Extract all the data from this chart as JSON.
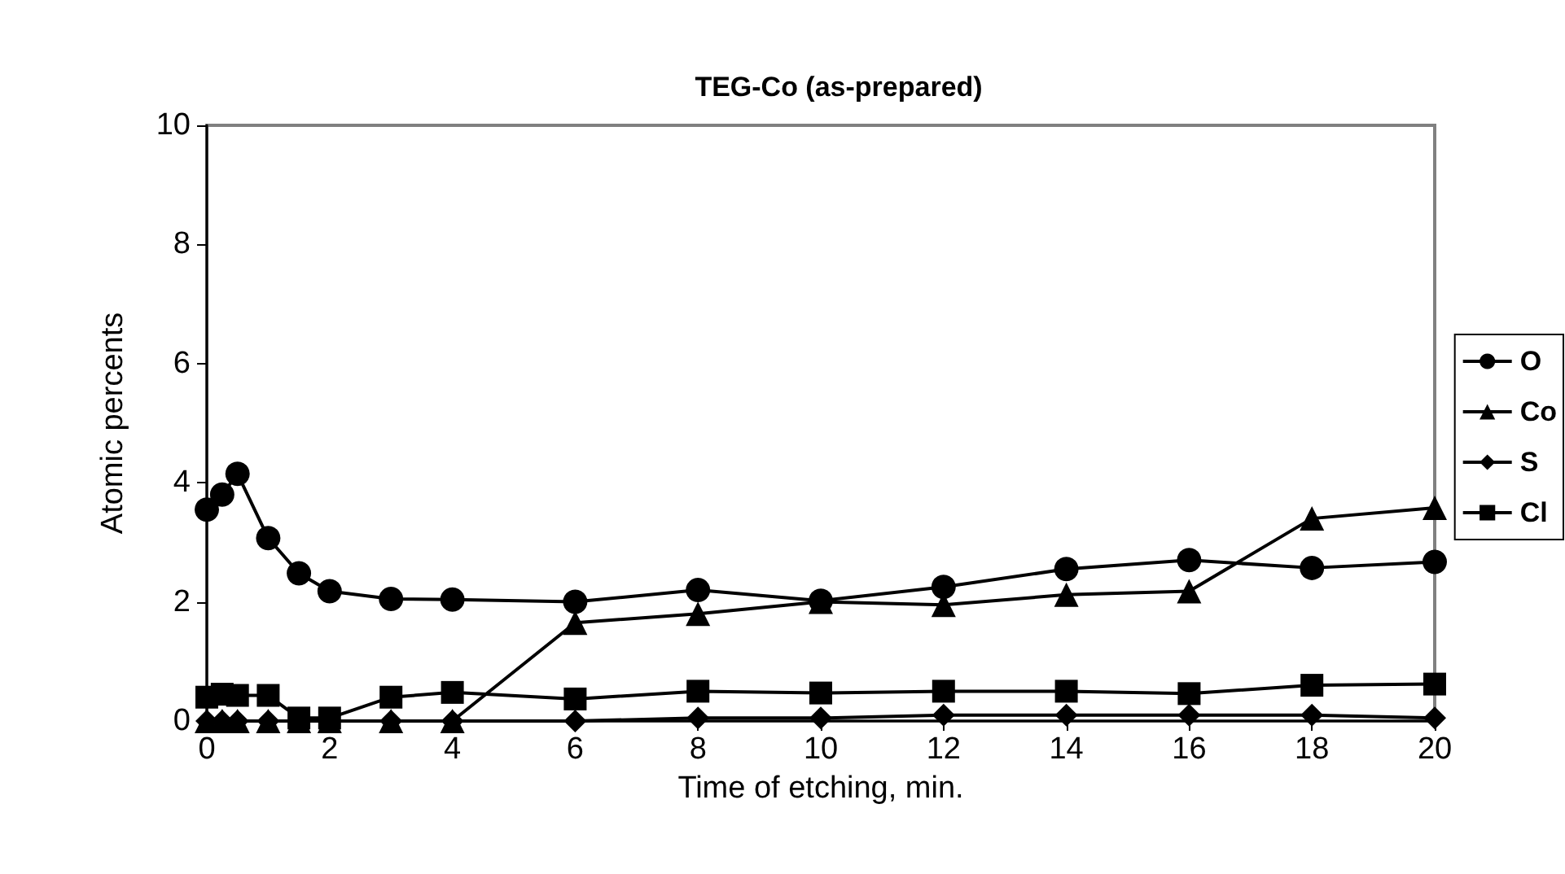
{
  "chart_data": {
    "type": "line",
    "title": "TEG-Co (as-prepared)",
    "xlabel": "Time of etching, min.",
    "ylabel": "Atomic percents",
    "x": [
      0,
      0.25,
      0.5,
      1,
      1.5,
      2,
      3,
      4,
      6,
      8,
      10,
      12,
      14,
      16,
      18,
      20
    ],
    "series": [
      {
        "name": "O",
        "color": "#000000",
        "marker": "circle",
        "values": [
          3.55,
          3.8,
          4.15,
          3.07,
          2.48,
          2.18,
          2.05,
          2.04,
          2.0,
          2.2,
          2.02,
          2.25,
          2.55,
          2.7,
          2.57,
          2.67
        ]
      },
      {
        "name": "Co",
        "color": "#000000",
        "marker": "triangle",
        "values": [
          0,
          0,
          0,
          0,
          0,
          0,
          0,
          0,
          1.65,
          1.8,
          2.0,
          1.95,
          2.12,
          2.18,
          3.4,
          3.58
        ]
      },
      {
        "name": "S",
        "color": "#000000",
        "marker": "diamond",
        "values": [
          0,
          0,
          0,
          0,
          0,
          0,
          0,
          0,
          0,
          0.05,
          0.05,
          0.1,
          0.1,
          0.1,
          0.1,
          0.05
        ]
      },
      {
        "name": "Cl",
        "color": "#000000",
        "marker": "square",
        "values": [
          0.4,
          0.45,
          0.43,
          0.43,
          0.05,
          0.05,
          0.4,
          0.48,
          0.37,
          0.5,
          0.47,
          0.5,
          0.5,
          0.46,
          0.6,
          0.62
        ]
      }
    ],
    "xlim": [
      0,
      20
    ],
    "xticks": [
      0,
      2,
      4,
      6,
      8,
      10,
      12,
      14,
      16,
      18,
      20
    ],
    "ylim": [
      0,
      10
    ],
    "yticks": [
      0,
      2,
      4,
      6,
      8,
      10
    ],
    "grid": false,
    "legend": "right",
    "line_style": "solid"
  }
}
